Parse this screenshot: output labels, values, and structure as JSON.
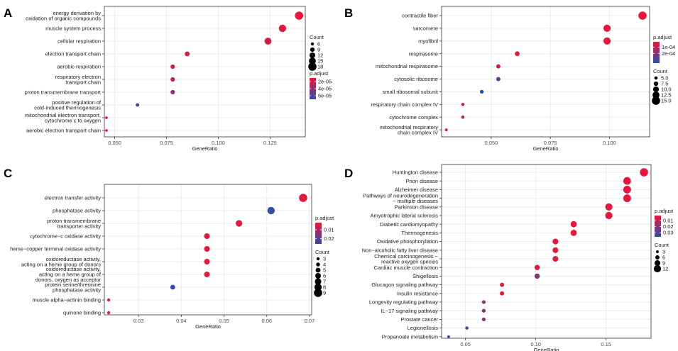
{
  "figure": {
    "panels": [
      "A",
      "B",
      "C",
      "D"
    ]
  },
  "chart_data": [
    {
      "panel": "A",
      "type": "scatter",
      "xlabel": "GeneRatio",
      "xticks": [
        0.05,
        0.075,
        0.1,
        0.125
      ],
      "xticklabels": [
        "0.050",
        "0.075",
        "0.100",
        "0.125"
      ],
      "xlim": [
        0.045,
        0.142
      ],
      "categories": [
        [
          "energy derivation by",
          "oxidation of organic compounds"
        ],
        [
          "muscle system process"
        ],
        [
          "cellular respiration"
        ],
        [
          "electron transport chain"
        ],
        [
          "aerobic respiration"
        ],
        [
          "respiratory electron",
          "transport chain"
        ],
        [
          "proton transmembrane transport"
        ],
        [
          "positive regulation of",
          "cold-induced thermogenesis"
        ],
        [
          "mitochondrial electron transport,",
          "cytochrome c to oxygen"
        ],
        [
          "aerobic electron transport chain"
        ]
      ],
      "x": [
        0.139,
        0.131,
        0.124,
        0.085,
        0.078,
        0.078,
        0.078,
        0.061,
        0.046,
        0.046
      ],
      "count": [
        18,
        16,
        15,
        10,
        9,
        9,
        9,
        7,
        5,
        5
      ],
      "padj": [
        1e-05,
        1.2e-05,
        1.5e-05,
        1.5e-05,
        1.5e-05,
        2e-05,
        3.8e-05,
        6.5e-05,
        1.5e-05,
        1.5e-05
      ],
      "color_legend": {
        "title": "p.adjust",
        "ticks": [
          2e-05,
          4e-05,
          6e-05
        ],
        "labels": [
          "2e-05",
          "4e-05",
          "6e-05"
        ],
        "range": [
          1e-05,
          7e-05
        ]
      },
      "size_legend": {
        "title": "Count",
        "values": [
          6,
          9,
          12,
          15,
          18
        ],
        "labels": [
          "6",
          "9",
          "12",
          "15",
          "18"
        ],
        "range": [
          4,
          18
        ],
        "order": "padj-first"
      }
    },
    {
      "panel": "B",
      "type": "scatter",
      "xlabel": "GeneRatio",
      "xticks": [
        0.05,
        0.075,
        0.1
      ],
      "xticklabels": [
        "0.050",
        "0.075",
        "0.100"
      ],
      "xlim": [
        0.029,
        0.117
      ],
      "categories": [
        [
          "contractile fiber"
        ],
        [
          "sarcomere"
        ],
        [
          "myofibril"
        ],
        [
          "respirasome"
        ],
        [
          "mitochondrial respirasome"
        ],
        [
          "cytosolic ribosome"
        ],
        [
          "small ribosomal subunit"
        ],
        [
          "respiratory chain complex IV"
        ],
        [
          "cytochrome complex"
        ],
        [
          "mitochondrial respiratory",
          "chain complex IV"
        ]
      ],
      "x": [
        0.114,
        0.099,
        0.099,
        0.061,
        0.053,
        0.053,
        0.046,
        0.038,
        0.038,
        0.031
      ],
      "count": [
        15,
        13,
        13,
        8,
        7,
        7,
        6,
        5,
        5,
        4
      ],
      "padj": [
        1e-05,
        1.5e-05,
        1.5e-05,
        2e-05,
        6e-05,
        0.00028,
        0.00036,
        2e-05,
        0.00015,
        2e-05
      ],
      "color_legend": {
        "title": "p.adjust",
        "ticks": [
          0.0001,
          0.0002
        ],
        "labels": [
          "1e-04",
          "2e-04"
        ],
        "range": [
          1e-05,
          0.00036
        ]
      },
      "size_legend": {
        "title": "Count",
        "values": [
          5.0,
          7.5,
          10.0,
          12.5,
          15.0
        ],
        "labels": [
          "5.0",
          "7.5",
          "10.0",
          "12.5",
          "15.0"
        ],
        "range": [
          3,
          15
        ],
        "order": "padj-first"
      }
    },
    {
      "panel": "C",
      "type": "scatter",
      "xlabel": "GeneRatio",
      "xticks": [
        0.03,
        0.04,
        0.05,
        0.06,
        0.07
      ],
      "xticklabels": [
        "0.03",
        "0.04",
        "0.05",
        "0.06",
        "0.07"
      ],
      "xlim": [
        0.022,
        0.0705
      ],
      "categories": [
        [
          "electron transfer activity"
        ],
        [
          "phosphatase activity"
        ],
        [
          "proton transmembrane",
          "transporter activity"
        ],
        [
          "cytochrome−c oxidase activity"
        ],
        [
          "heme−copper terminal oxidase activity"
        ],
        [
          "oxidoreductase activity,",
          "acting on a heme group of donors"
        ],
        [
          "oxidoreductase activity,",
          "acting on a heme group of",
          "donors, oxygen as acceptor"
        ],
        [
          "protein serine/threonine",
          "phosphatase activity"
        ],
        [
          "muscle alpha−actinin binding"
        ],
        [
          "quinone binding"
        ]
      ],
      "x": [
        0.0685,
        0.061,
        0.0535,
        0.046,
        0.046,
        0.046,
        0.046,
        0.038,
        0.023,
        0.023
      ],
      "count": [
        9,
        8,
        7,
        6,
        6,
        6,
        6,
        5,
        3,
        3
      ],
      "padj": [
        0.003,
        0.025,
        0.004,
        0.004,
        0.004,
        0.004,
        0.004,
        0.025,
        0.004,
        0.004
      ],
      "color_legend": {
        "title": "p.adjust",
        "ticks": [
          0.01,
          0.02
        ],
        "labels": [
          "0.01",
          "0.02"
        ],
        "range": [
          0.002,
          0.026
        ]
      },
      "size_legend": {
        "title": "Count",
        "values": [
          3,
          4,
          5,
          6,
          7,
          8,
          9
        ],
        "labels": [
          "3",
          "4",
          "5",
          "6",
          "7",
          "8",
          "9"
        ],
        "range": [
          2,
          9
        ],
        "order": "padj-first"
      }
    },
    {
      "panel": "D",
      "type": "scatter",
      "xlabel": "GeneRatio",
      "xticks": [
        0.05,
        0.1,
        0.15
      ],
      "xticklabels": [
        "0.05",
        "0.10",
        "0.15"
      ],
      "xlim": [
        0.033,
        0.182
      ],
      "categories": [
        [
          "Huntington disease"
        ],
        [
          "Prion disease"
        ],
        [
          "Alzheimer disease"
        ],
        [
          "Pathways of neurodegeneration",
          "− multiple diseases"
        ],
        [
          "Parkinson disease"
        ],
        [
          "Amyotrophic lateral sclerosis"
        ],
        [
          "Diabetic cardiomyopathy"
        ],
        [
          "Thermogenesis"
        ],
        [
          "Oxidative phosphorylation"
        ],
        [
          "Non−alcoholic fatty liver disease"
        ],
        [
          "Chemical carcinogenesis −",
          "reactive oxygen species"
        ],
        [
          "Cardiac muscle contraction"
        ],
        [
          "Shigellosis"
        ],
        [
          "Glucagon signaling pathway"
        ],
        [
          "Insulin resistance"
        ],
        [
          "Longevity regulating pathway"
        ],
        [
          "IL−17 signaling pathway"
        ],
        [
          "Prostate cancer"
        ],
        [
          "Legionellosis"
        ],
        [
          "Propanoate metabolism"
        ]
      ],
      "x": [
        0.177,
        0.165,
        0.165,
        0.165,
        0.152,
        0.152,
        0.127,
        0.127,
        0.114,
        0.114,
        0.114,
        0.101,
        0.101,
        0.076,
        0.076,
        0.063,
        0.063,
        0.063,
        0.051,
        0.038
      ],
      "count": [
        14,
        13,
        13,
        13,
        12,
        12,
        10,
        10,
        9,
        9,
        9,
        8,
        8,
        6,
        6,
        5,
        5,
        5,
        4,
        3
      ],
      "padj": [
        0.003,
        0.003,
        0.003,
        0.003,
        0.003,
        0.003,
        0.003,
        0.003,
        0.003,
        0.003,
        0.003,
        0.003,
        0.02,
        0.004,
        0.004,
        0.02,
        0.02,
        0.02,
        0.025,
        0.035
      ],
      "color_legend": {
        "title": "p.adjust",
        "ticks": [
          0.01,
          0.02,
          0.03
        ],
        "labels": [
          "0.01",
          "0.02",
          "0.03"
        ],
        "range": [
          0.002,
          0.037
        ]
      },
      "size_legend": {
        "title": "Count",
        "values": [
          3,
          6,
          9,
          12
        ],
        "labels": [
          "3",
          "6",
          "9",
          "12"
        ],
        "range": [
          2,
          14
        ],
        "order": "padj-first"
      }
    }
  ],
  "colors": {
    "low": "#e8163a",
    "high": "#2d4ea6",
    "panel_background": "#ffffff",
    "grid": "#ebebeb",
    "border": "#333333",
    "text": "#1a1a1a"
  }
}
